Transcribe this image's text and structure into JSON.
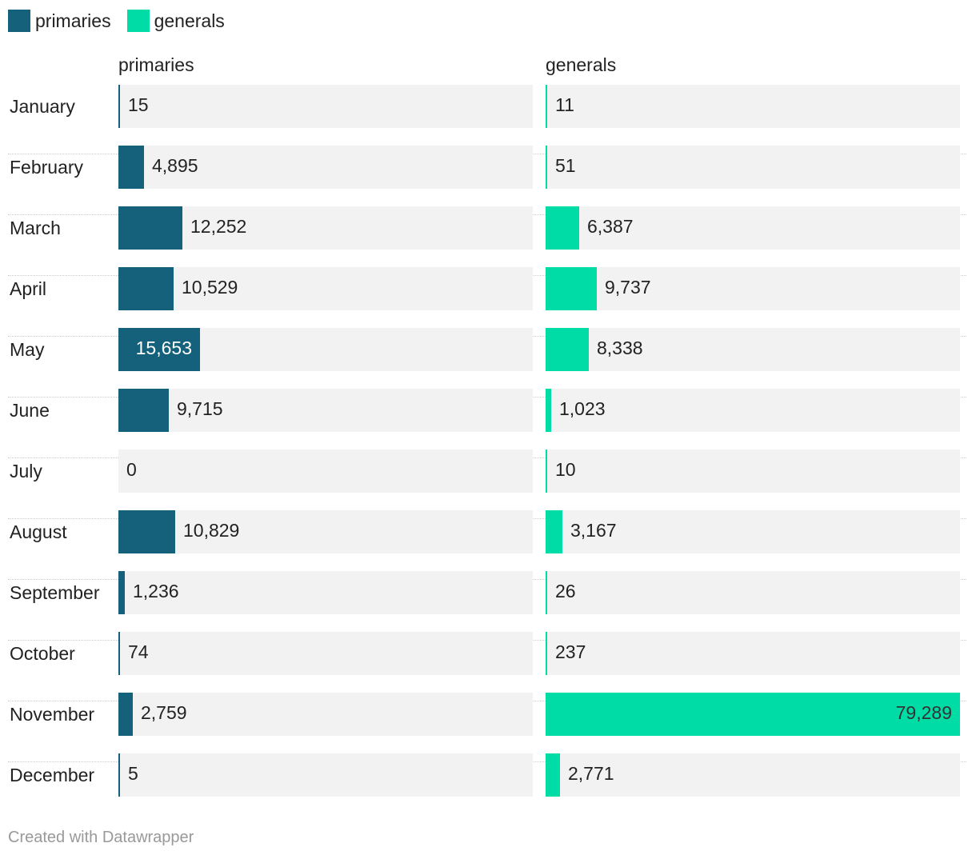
{
  "chart_data": {
    "type": "bar",
    "layout": "split-bars",
    "legend": [
      {
        "name": "primaries",
        "color": "#15607a"
      },
      {
        "name": "generals",
        "color": "#00dca6"
      }
    ],
    "categories": [
      "January",
      "February",
      "March",
      "April",
      "May",
      "June",
      "July",
      "August",
      "September",
      "October",
      "November",
      "December"
    ],
    "series": [
      {
        "name": "primaries",
        "header": "primaries",
        "color": "#15607a",
        "values": [
          15,
          4895,
          12252,
          10529,
          15653,
          9715,
          0,
          10829,
          1236,
          74,
          2759,
          5
        ],
        "labels": [
          "15",
          "4,895",
          "12,252",
          "10,529",
          "15,653",
          "9,715",
          "0",
          "10,829",
          "1,236",
          "74",
          "2,759",
          "5"
        ]
      },
      {
        "name": "generals",
        "header": "generals",
        "color": "#00dca6",
        "values": [
          11,
          51,
          6387,
          9737,
          8338,
          1023,
          10,
          3167,
          26,
          237,
          79289,
          2771
        ],
        "labels": [
          "11",
          "51",
          "6,387",
          "9,737",
          "8,338",
          "1,023",
          "10",
          "3,167",
          "26",
          "237",
          "79,289",
          "2,771"
        ]
      }
    ],
    "xlim": [
      0,
      79289
    ]
  },
  "footer": "Created with Datawrapper"
}
